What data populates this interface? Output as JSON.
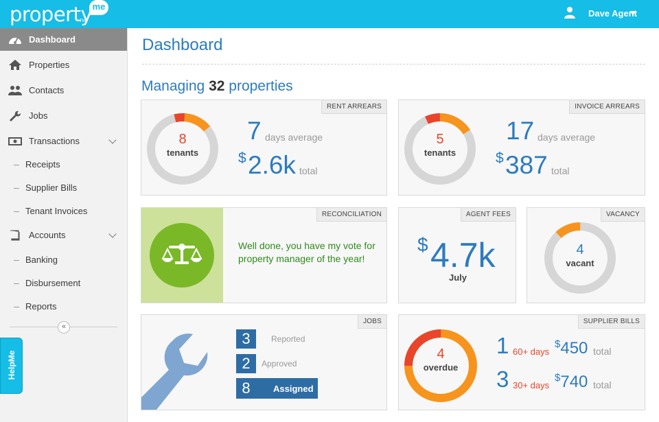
{
  "header": {
    "logo_text": "property",
    "logo_badge": "me",
    "logo_tm": "TM",
    "user_name": "Dave Agent",
    "bg_color": "#16bde6"
  },
  "sidebar": {
    "items": [
      {
        "label": "Dashboard",
        "icon": "dashboard-icon",
        "active": true
      },
      {
        "label": "Properties",
        "icon": "home-icon"
      },
      {
        "label": "Contacts",
        "icon": "users-icon"
      },
      {
        "label": "Jobs",
        "icon": "wrench-icon"
      },
      {
        "label": "Transactions",
        "icon": "money-icon",
        "expandable": true
      },
      {
        "label": "Receipts",
        "sub": true
      },
      {
        "label": "Supplier Bills",
        "sub": true
      },
      {
        "label": "Tenant Invoices",
        "sub": true
      },
      {
        "label": "Accounts",
        "icon": "book-icon",
        "expandable": true
      },
      {
        "label": "Banking",
        "sub": true
      },
      {
        "label": "Disbursement",
        "sub": true
      },
      {
        "label": "Reports",
        "sub": true
      }
    ],
    "collapse_glyph": "«",
    "helpme_label": "HelpMe"
  },
  "main": {
    "title": "Dashboard",
    "managing_prefix": "Managing",
    "managing_count": "32",
    "managing_suffix": "properties"
  },
  "rent_arrears": {
    "tag": "RENT ARREARS",
    "count": "8",
    "count_label": "tenants",
    "days": "7",
    "days_label": "days average",
    "dollar": "$",
    "amount": "2.6k",
    "amount_label": "total",
    "donut_fraction": 0.14
  },
  "invoice_arrears": {
    "tag": "INVOICE ARREARS",
    "count": "5",
    "count_label": "tenants",
    "days": "17",
    "days_label": "days average",
    "dollar": "$",
    "amount": "387",
    "amount_label": "total",
    "donut_fraction": 0.16
  },
  "reconciliation": {
    "tag": "RECONCILIATION",
    "message": "Well done, you have my vote for property manager of the year!"
  },
  "agent_fees": {
    "tag": "AGENT FEES",
    "dollar": "$",
    "amount": "4.7k",
    "period": "July"
  },
  "vacancy": {
    "tag": "VACANCY",
    "count": "4",
    "count_label": "vacant",
    "donut_fraction": 0.12
  },
  "jobs": {
    "tag": "JOBS",
    "rows": [
      {
        "count": "3",
        "label": "Reported"
      },
      {
        "count": "2",
        "label": "Approved"
      },
      {
        "count": "8",
        "label": "Assigned"
      }
    ]
  },
  "supplier_bills": {
    "tag": "SUPPLIER BILLS",
    "count": "4",
    "count_label": "overdue",
    "donut_fraction": 0.25,
    "rows": [
      {
        "count": "1",
        "days": "60+ days",
        "dollar": "$",
        "amount": "450",
        "total": "total"
      },
      {
        "count": "3",
        "days": "30+ days",
        "dollar": "$",
        "amount": "740",
        "total": "total"
      }
    ]
  },
  "colors": {
    "accent_blue": "#2c7bbf",
    "red": "#e8452b",
    "orange": "#f7941d",
    "grey_ring": "#d6d6d6",
    "green": "#7ab828"
  }
}
